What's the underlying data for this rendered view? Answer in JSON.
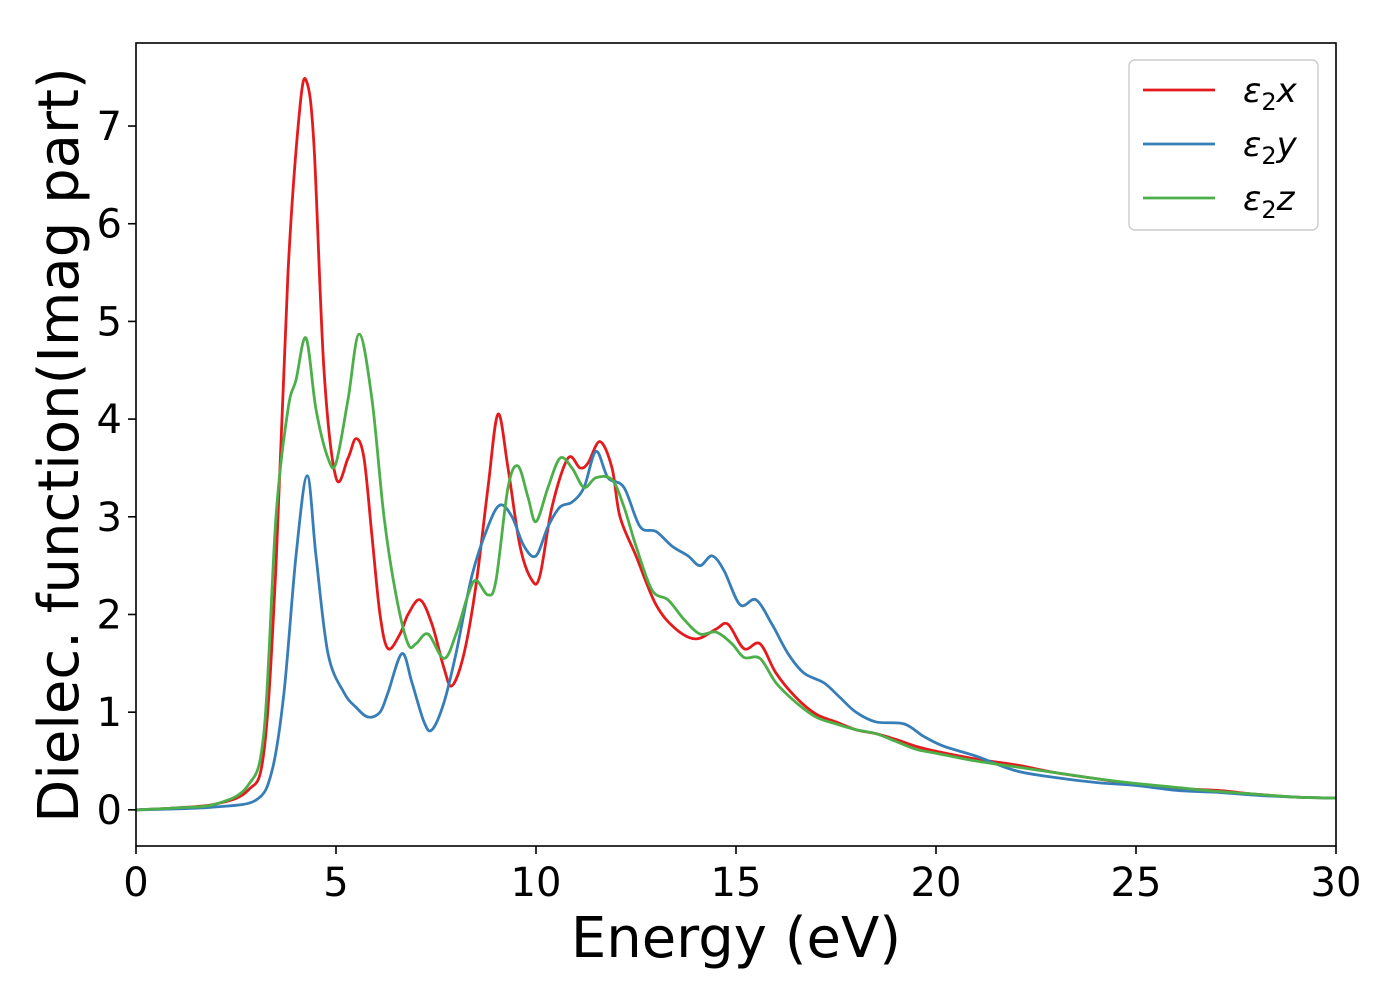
{
  "chart_data": {
    "type": "line",
    "title": "",
    "xlabel": "Energy (eV)",
    "ylabel": "Dielec. function(Imag part)",
    "xlim": [
      0,
      30
    ],
    "ylim": [
      -0.37,
      7.85
    ],
    "xticks": [
      0,
      5,
      10,
      15,
      20,
      25,
      30
    ],
    "yticks": [
      0,
      1,
      2,
      3,
      4,
      5,
      6,
      7
    ],
    "grid": false,
    "legend_position": "top-right",
    "series": [
      {
        "name": "ε₂x",
        "legend_base": "ε",
        "legend_sub": "2",
        "legend_suffix": "x",
        "color": "#e41a1c",
        "points": [
          [
            0,
            0
          ],
          [
            1,
            0.02
          ],
          [
            2,
            0.06
          ],
          [
            2.8,
            0.2
          ],
          [
            3.2,
            0.6
          ],
          [
            3.5,
            2.5
          ],
          [
            3.8,
            5.5
          ],
          [
            4.1,
            7.2
          ],
          [
            4.27,
            7.45
          ],
          [
            4.45,
            6.8
          ],
          [
            4.7,
            4.5
          ],
          [
            5.0,
            3.4
          ],
          [
            5.3,
            3.6
          ],
          [
            5.5,
            3.8
          ],
          [
            5.7,
            3.6
          ],
          [
            5.9,
            2.8
          ],
          [
            6.1,
            2.0
          ],
          [
            6.3,
            1.65
          ],
          [
            6.6,
            1.8
          ],
          [
            6.8,
            2.0
          ],
          [
            7.1,
            2.15
          ],
          [
            7.4,
            1.9
          ],
          [
            7.7,
            1.45
          ],
          [
            7.9,
            1.27
          ],
          [
            8.2,
            1.6
          ],
          [
            8.5,
            2.3
          ],
          [
            8.8,
            3.3
          ],
          [
            9.05,
            4.05
          ],
          [
            9.3,
            3.5
          ],
          [
            9.6,
            2.7
          ],
          [
            9.9,
            2.35
          ],
          [
            10.1,
            2.4
          ],
          [
            10.4,
            3.1
          ],
          [
            10.8,
            3.6
          ],
          [
            11.1,
            3.5
          ],
          [
            11.3,
            3.55
          ],
          [
            11.6,
            3.77
          ],
          [
            11.9,
            3.5
          ],
          [
            12.1,
            3.0
          ],
          [
            12.5,
            2.6
          ],
          [
            13,
            2.1
          ],
          [
            13.5,
            1.85
          ],
          [
            14,
            1.75
          ],
          [
            14.5,
            1.85
          ],
          [
            14.8,
            1.9
          ],
          [
            15.2,
            1.65
          ],
          [
            15.6,
            1.7
          ],
          [
            16.0,
            1.4
          ],
          [
            16.5,
            1.15
          ],
          [
            17,
            0.98
          ],
          [
            17.5,
            0.9
          ],
          [
            18,
            0.82
          ],
          [
            18.5,
            0.78
          ],
          [
            19,
            0.72
          ],
          [
            19.5,
            0.65
          ],
          [
            20,
            0.6
          ],
          [
            21,
            0.52
          ],
          [
            22,
            0.46
          ],
          [
            23,
            0.38
          ],
          [
            24,
            0.32
          ],
          [
            25,
            0.26
          ],
          [
            26,
            0.22
          ],
          [
            27,
            0.2
          ],
          [
            28,
            0.16
          ],
          [
            29,
            0.13
          ],
          [
            30,
            0.12
          ]
        ]
      },
      {
        "name": "ε₂y",
        "legend_base": "ε",
        "legend_sub": "2",
        "legend_suffix": "y",
        "color": "#377eb8",
        "points": [
          [
            0,
            0
          ],
          [
            1,
            0.01
          ],
          [
            2,
            0.03
          ],
          [
            3,
            0.1
          ],
          [
            3.4,
            0.4
          ],
          [
            3.7,
            1.2
          ],
          [
            4.0,
            2.6
          ],
          [
            4.28,
            3.42
          ],
          [
            4.5,
            2.6
          ],
          [
            4.8,
            1.6
          ],
          [
            5.2,
            1.2
          ],
          [
            5.5,
            1.05
          ],
          [
            5.8,
            0.95
          ],
          [
            6.1,
            1.0
          ],
          [
            6.3,
            1.2
          ],
          [
            6.65,
            1.6
          ],
          [
            6.9,
            1.3
          ],
          [
            7.2,
            0.9
          ],
          [
            7.4,
            0.82
          ],
          [
            7.7,
            1.1
          ],
          [
            8.0,
            1.6
          ],
          [
            8.4,
            2.4
          ],
          [
            8.8,
            2.9
          ],
          [
            9.1,
            3.12
          ],
          [
            9.4,
            3.0
          ],
          [
            9.7,
            2.7
          ],
          [
            10.0,
            2.6
          ],
          [
            10.3,
            2.9
          ],
          [
            10.6,
            3.1
          ],
          [
            10.9,
            3.15
          ],
          [
            11.2,
            3.3
          ],
          [
            11.5,
            3.67
          ],
          [
            11.8,
            3.4
          ],
          [
            12.2,
            3.3
          ],
          [
            12.6,
            2.9
          ],
          [
            13.0,
            2.85
          ],
          [
            13.4,
            2.7
          ],
          [
            13.8,
            2.6
          ],
          [
            14.1,
            2.5
          ],
          [
            14.4,
            2.6
          ],
          [
            14.7,
            2.45
          ],
          [
            15.1,
            2.1
          ],
          [
            15.5,
            2.15
          ],
          [
            15.9,
            1.9
          ],
          [
            16.3,
            1.6
          ],
          [
            16.7,
            1.4
          ],
          [
            17.2,
            1.3
          ],
          [
            17.6,
            1.15
          ],
          [
            18.0,
            1.0
          ],
          [
            18.5,
            0.9
          ],
          [
            19.2,
            0.88
          ],
          [
            19.7,
            0.75
          ],
          [
            20.2,
            0.65
          ],
          [
            21,
            0.55
          ],
          [
            22,
            0.4
          ],
          [
            23,
            0.33
          ],
          [
            24,
            0.28
          ],
          [
            25,
            0.25
          ],
          [
            26,
            0.2
          ],
          [
            27,
            0.18
          ],
          [
            28,
            0.15
          ],
          [
            29,
            0.13
          ],
          [
            30,
            0.12
          ]
        ]
      },
      {
        "name": "ε₂z",
        "legend_base": "ε",
        "legend_sub": "2",
        "legend_suffix": "z",
        "color": "#4daf4a",
        "points": [
          [
            0,
            0
          ],
          [
            1,
            0.02
          ],
          [
            2,
            0.06
          ],
          [
            2.8,
            0.25
          ],
          [
            3.2,
            0.8
          ],
          [
            3.5,
            3.0
          ],
          [
            3.8,
            4.1
          ],
          [
            4.0,
            4.4
          ],
          [
            4.25,
            4.83
          ],
          [
            4.5,
            4.1
          ],
          [
            4.8,
            3.6
          ],
          [
            5.0,
            3.55
          ],
          [
            5.3,
            4.2
          ],
          [
            5.58,
            4.87
          ],
          [
            5.9,
            4.2
          ],
          [
            6.2,
            3.0
          ],
          [
            6.5,
            2.2
          ],
          [
            6.8,
            1.7
          ],
          [
            7.0,
            1.7
          ],
          [
            7.3,
            1.8
          ],
          [
            7.7,
            1.55
          ],
          [
            8.0,
            1.8
          ],
          [
            8.3,
            2.2
          ],
          [
            8.5,
            2.35
          ],
          [
            8.8,
            2.2
          ],
          [
            9.0,
            2.35
          ],
          [
            9.3,
            3.3
          ],
          [
            9.55,
            3.52
          ],
          [
            9.8,
            3.2
          ],
          [
            10.0,
            2.95
          ],
          [
            10.3,
            3.3
          ],
          [
            10.6,
            3.6
          ],
          [
            10.9,
            3.5
          ],
          [
            11.2,
            3.3
          ],
          [
            11.5,
            3.4
          ],
          [
            11.9,
            3.38
          ],
          [
            12.2,
            3.1
          ],
          [
            12.5,
            2.7
          ],
          [
            12.9,
            2.25
          ],
          [
            13.3,
            2.15
          ],
          [
            13.7,
            1.95
          ],
          [
            14.1,
            1.8
          ],
          [
            14.5,
            1.82
          ],
          [
            14.9,
            1.7
          ],
          [
            15.2,
            1.56
          ],
          [
            15.6,
            1.55
          ],
          [
            16.0,
            1.3
          ],
          [
            16.5,
            1.1
          ],
          [
            17,
            0.95
          ],
          [
            17.5,
            0.88
          ],
          [
            18,
            0.82
          ],
          [
            18.5,
            0.78
          ],
          [
            19,
            0.7
          ],
          [
            19.5,
            0.62
          ],
          [
            20,
            0.58
          ],
          [
            21,
            0.5
          ],
          [
            22,
            0.44
          ],
          [
            23,
            0.38
          ],
          [
            24,
            0.32
          ],
          [
            25,
            0.27
          ],
          [
            26,
            0.23
          ],
          [
            27,
            0.19
          ],
          [
            28,
            0.16
          ],
          [
            29,
            0.13
          ],
          [
            30,
            0.12
          ]
        ]
      }
    ]
  }
}
